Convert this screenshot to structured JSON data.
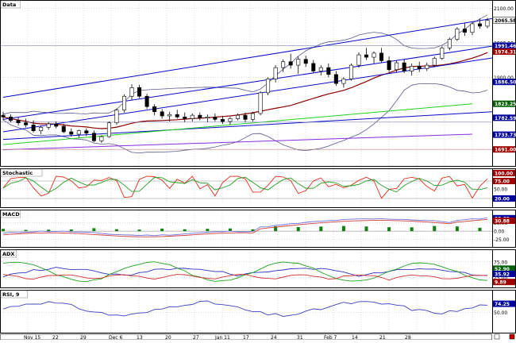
{
  "colors": {
    "background": "#ffffff",
    "panel_border": "#000000",
    "grid": "#b8b8b8",
    "candle_up": "#ffffff",
    "candle_down": "#000000",
    "channel_line": "#0a0ac8",
    "bollinger": "#5a5a8c",
    "ma_short": "#8b0000",
    "ma_mid": "#20d020",
    "ma_long": "#0a0ac8",
    "ma_longest": "#8a2be2",
    "stoch_k": "#e0301e",
    "stoch_d": "#20a020",
    "macd_line": "#7070e0",
    "macd_signal": "#d04040",
    "macd_hist": "#108010",
    "adx": "#3030c0",
    "di_plus": "#20a020",
    "di_minus": "#d03030",
    "rsi": "#4040c0",
    "badge_blue": "#0000a0",
    "badge_red": "#a00000",
    "badge_green": "#006000",
    "badge_white": "#ffffff"
  },
  "chart_data": [
    {
      "type": "candlestick",
      "panel": "price",
      "title": "Data",
      "y_ticks": [
        {
          "label": "2100.00",
          "value": 2100
        },
        {
          "label": "2000.00",
          "value": 2000
        },
        {
          "label": "1900.00",
          "value": 1900
        }
      ],
      "y_badges": [
        {
          "label": "2065.58",
          "value": 2065.58,
          "color": "white"
        },
        {
          "label": "1991.46",
          "value": 1991.46,
          "color": "blue"
        },
        {
          "label": "1974.31",
          "value": 1974.31,
          "color": "red"
        },
        {
          "label": "1886.50",
          "value": 1886.5,
          "color": "blue"
        },
        {
          "label": "1823.25",
          "value": 1823.25,
          "color": "green"
        },
        {
          "label": "1782.59",
          "value": 1782.59,
          "color": "blue"
        },
        {
          "label": "1733.73",
          "value": 1733.73,
          "color": "blue"
        },
        {
          "label": "1691.00",
          "value": 1691,
          "color": "red"
        }
      ],
      "ylim": [
        1650,
        2110
      ],
      "x_labels": [
        "Nov 15",
        "22",
        "29",
        "Dec 6",
        "13",
        "20",
        "27",
        "Jan 11",
        "17",
        "24",
        "31",
        "Feb 7",
        "14",
        "21",
        "28"
      ],
      "ohlc": [
        [
          1790,
          1800,
          1775,
          1785
        ],
        [
          1785,
          1792,
          1770,
          1775
        ],
        [
          1775,
          1785,
          1760,
          1768
        ],
        [
          1768,
          1780,
          1755,
          1762
        ],
        [
          1762,
          1775,
          1740,
          1745
        ],
        [
          1745,
          1760,
          1735,
          1755
        ],
        [
          1755,
          1770,
          1748,
          1765
        ],
        [
          1765,
          1772,
          1752,
          1758
        ],
        [
          1758,
          1765,
          1738,
          1742
        ],
        [
          1742,
          1752,
          1728,
          1735
        ],
        [
          1735,
          1748,
          1725,
          1745
        ],
        [
          1745,
          1752,
          1730,
          1738
        ],
        [
          1738,
          1746,
          1712,
          1716
        ],
        [
          1716,
          1732,
          1710,
          1728
        ],
        [
          1728,
          1772,
          1725,
          1768
        ],
        [
          1768,
          1810,
          1762,
          1805
        ],
        [
          1805,
          1850,
          1798,
          1845
        ],
        [
          1845,
          1880,
          1835,
          1870
        ],
        [
          1870,
          1878,
          1840,
          1845
        ],
        [
          1845,
          1852,
          1808,
          1815
        ],
        [
          1815,
          1822,
          1790,
          1800
        ],
        [
          1800,
          1808,
          1780,
          1788
        ],
        [
          1788,
          1800,
          1772,
          1792
        ],
        [
          1792,
          1806,
          1780,
          1785
        ],
        [
          1785,
          1798,
          1770,
          1780
        ],
        [
          1780,
          1795,
          1772,
          1790
        ],
        [
          1790,
          1798,
          1775,
          1782
        ],
        [
          1782,
          1792,
          1770,
          1785
        ],
        [
          1785,
          1795,
          1772,
          1778
        ],
        [
          1778,
          1788,
          1765,
          1772
        ],
        [
          1772,
          1785,
          1762,
          1780
        ],
        [
          1780,
          1795,
          1775,
          1790
        ],
        [
          1790,
          1798,
          1770,
          1778
        ],
        [
          1778,
          1800,
          1772,
          1795
        ],
        [
          1795,
          1860,
          1790,
          1855
        ],
        [
          1855,
          1900,
          1848,
          1895
        ],
        [
          1895,
          1935,
          1885,
          1928
        ],
        [
          1928,
          1952,
          1915,
          1945
        ],
        [
          1945,
          1968,
          1925,
          1935
        ],
        [
          1935,
          1960,
          1910,
          1952
        ],
        [
          1952,
          1962,
          1930,
          1940
        ],
        [
          1940,
          1950,
          1912,
          1918
        ],
        [
          1918,
          1935,
          1905,
          1928
        ],
        [
          1928,
          1940,
          1900,
          1908
        ],
        [
          1908,
          1918,
          1875,
          1882
        ],
        [
          1882,
          1900,
          1870,
          1895
        ],
        [
          1895,
          1940,
          1890,
          1935
        ],
        [
          1935,
          1972,
          1928,
          1965
        ],
        [
          1965,
          1985,
          1950,
          1958
        ],
        [
          1958,
          1975,
          1940,
          1970
        ],
        [
          1970,
          1985,
          1942,
          1948
        ],
        [
          1948,
          1960,
          1915,
          1922
        ],
        [
          1922,
          1948,
          1915,
          1942
        ],
        [
          1942,
          1952,
          1912,
          1918
        ],
        [
          1918,
          1940,
          1905,
          1932
        ],
        [
          1932,
          1945,
          1915,
          1925
        ],
        [
          1925,
          1942,
          1918,
          1935
        ],
        [
          1935,
          1960,
          1930,
          1955
        ],
        [
          1955,
          1990,
          1950,
          1985
        ],
        [
          1985,
          2015,
          1978,
          2010
        ],
        [
          2010,
          2045,
          2005,
          2040
        ],
        [
          2040,
          2058,
          2020,
          2030
        ],
        [
          2030,
          2060,
          2022,
          2055
        ],
        [
          2055,
          2070,
          2040,
          2048
        ],
        [
          2048,
          2072,
          2042,
          2065
        ]
      ]
    },
    {
      "type": "line",
      "panel": "stochastic",
      "title": "Stochastic",
      "y_ticks": [
        {
          "label": "50.00",
          "value": 50
        }
      ],
      "y_badges": [
        {
          "label": "100.00",
          "value": 100,
          "color": "red"
        },
        {
          "label": "75.00",
          "value": 75,
          "color": "red"
        },
        {
          "label": "20.00",
          "value": 20,
          "color": "blue"
        }
      ],
      "ylim": [
        0,
        100
      ]
    },
    {
      "type": "bar",
      "panel": "macd",
      "title": "MACD",
      "y_ticks": [
        {
          "label": "25.00",
          "value": 25
        },
        {
          "label": "0.00",
          "value": 0
        },
        {
          "label": "-25.00",
          "value": -25
        }
      ],
      "y_badges": [
        {
          "label": "38.62",
          "value": 38.62,
          "color": "blue"
        },
        {
          "label": "30.88",
          "value": 30.88,
          "color": "red"
        }
      ],
      "ylim": [
        -40,
        50
      ]
    },
    {
      "type": "line",
      "panel": "adx",
      "title": "ADX",
      "y_ticks": [
        {
          "label": "75.00",
          "value": 75
        },
        {
          "label": "25.00",
          "value": 25
        }
      ],
      "y_badges": [
        {
          "label": "52.90",
          "value": 52.9,
          "color": "green"
        },
        {
          "label": "35.92",
          "value": 35.92,
          "color": "blue"
        },
        {
          "label": "9.89",
          "value": 9.89,
          "color": "red"
        }
      ],
      "ylim": [
        0,
        100
      ]
    },
    {
      "type": "line",
      "panel": "rsi",
      "title": "RSI, 9",
      "y_ticks": [
        {
          "label": "50.00",
          "value": 50
        }
      ],
      "y_badges": [
        {
          "label": "74.25",
          "value": 74.25,
          "color": "blue"
        }
      ],
      "ylim": [
        0,
        100
      ]
    }
  ]
}
